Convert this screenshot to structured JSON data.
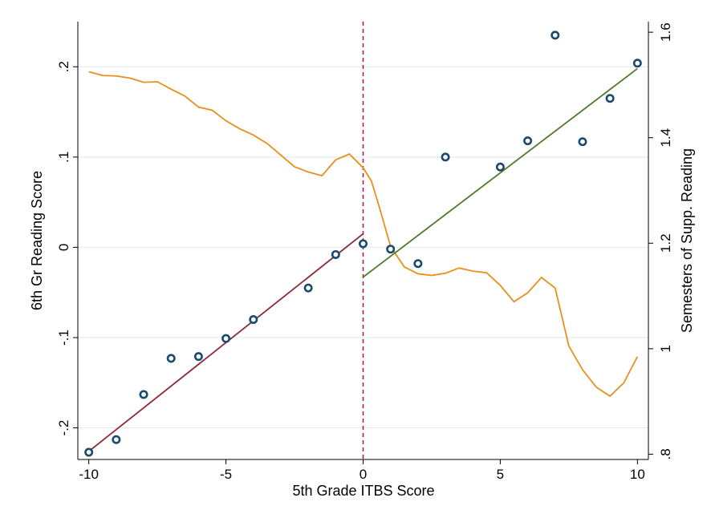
{
  "chart_data": {
    "type": "scatter",
    "title": "",
    "xlabel": "5th Grade ITBS Score",
    "ylabel": "6th Gr Reading Score",
    "y2label": "Semesters of Supp. Reading",
    "xlim": [
      -10.4,
      10.4
    ],
    "ylim": [
      -0.235,
      0.25
    ],
    "y2lim": [
      0.79,
      1.62
    ],
    "grid": true,
    "legend": "none",
    "xticks": [
      "-10",
      "-5",
      "0",
      "5",
      "10"
    ],
    "xtick_values": [
      -10,
      -5,
      0,
      5,
      10
    ],
    "yticks": [
      "-.2",
      "-.1",
      "0",
      ".1",
      ".2"
    ],
    "ytick_values": [
      -0.2,
      -0.1,
      0,
      0.1,
      0.2
    ],
    "y2ticks": [
      ".8",
      "1",
      "1.2",
      "1.4",
      "1.6"
    ],
    "y2tick_values": [
      0.8,
      1.0,
      1.2,
      1.4,
      1.6
    ],
    "cutoff": 0,
    "colors": {
      "markers": "#1a4a6e",
      "fit_left": "#8b2a35",
      "fit_right": "#4f7a28",
      "smooth": "#e8901a",
      "cutoff_line": "#b0143c",
      "grid": "#e4ecee"
    },
    "series": [
      {
        "type": "scatter",
        "axis": "left",
        "x": [
          -10,
          -9,
          -8,
          -7,
          -6,
          -5,
          -4,
          -2,
          -1,
          0,
          1,
          2,
          3,
          5,
          6,
          7,
          8,
          9,
          10
        ],
        "y": [
          -0.227,
          -0.213,
          -0.163,
          -0.123,
          -0.121,
          -0.101,
          -0.08,
          -0.045,
          -0.008,
          0.004,
          -0.002,
          -0.018,
          0.1,
          0.089,
          0.118,
          0.235,
          0.117,
          0.165,
          0.204
        ]
      },
      {
        "type": "line",
        "axis": "left",
        "x": [
          -10,
          0
        ],
        "y": [
          -0.226,
          0.015
        ]
      },
      {
        "type": "line",
        "axis": "left",
        "x": [
          0,
          10
        ],
        "y": [
          -0.033,
          0.198
        ]
      },
      {
        "type": "line",
        "axis": "right",
        "x": [
          -10,
          -9.5,
          -9,
          -8.5,
          -8,
          -7.5,
          -7,
          -6.5,
          -6,
          -5.5,
          -5,
          -4.5,
          -4,
          -3.5,
          -3,
          -2.5,
          -2,
          -1.5,
          -1,
          -0.5,
          0,
          0.3,
          0.6,
          1,
          1.5,
          2,
          2.5,
          3,
          3.5,
          4,
          4.5,
          5,
          5.5,
          6,
          6.5,
          7,
          7.5,
          8,
          8.5,
          9,
          9.5,
          10
        ],
        "y": [
          1.525,
          1.518,
          1.517,
          1.513,
          1.505,
          1.506,
          1.492,
          1.479,
          1.458,
          1.452,
          1.432,
          1.417,
          1.405,
          1.389,
          1.367,
          1.345,
          1.335,
          1.328,
          1.358,
          1.369,
          1.343,
          1.318,
          1.267,
          1.194,
          1.155,
          1.142,
          1.139,
          1.143,
          1.153,
          1.147,
          1.144,
          1.12,
          1.089,
          1.106,
          1.135,
          1.115,
          1.005,
          0.96,
          0.927,
          0.91,
          0.935,
          0.985
        ]
      }
    ]
  }
}
